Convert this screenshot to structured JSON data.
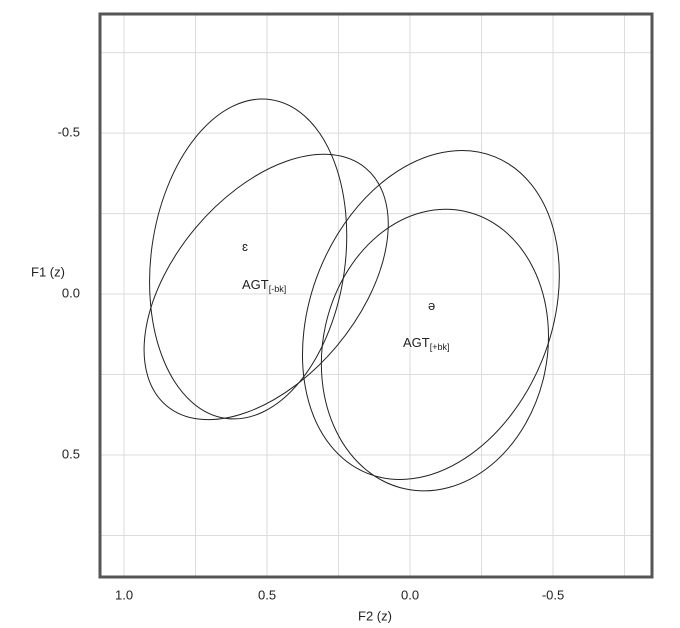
{
  "chart_data": {
    "type": "ellipse",
    "xlabel": "F2 (z)",
    "ylabel": "F1 (z)",
    "xlim": [
      1.084,
      -0.846
    ],
    "ylim": [
      -0.87,
      0.879
    ],
    "xticks": [
      {
        "value": 1.0,
        "label": "1.0"
      },
      0.5,
      {
        "value": 0.0,
        "label": "0.0"
      },
      -0.5
    ],
    "yticks": [
      -0.5,
      {
        "value": 0.0,
        "label": "0.0"
      },
      0.5
    ],
    "x_minor_ticks": [
      0.75,
      0.25,
      -0.25,
      -0.75
    ],
    "y_minor_ticks": [
      -0.75,
      -0.25,
      0.25,
      0.75
    ],
    "grid": true,
    "color": "#222222",
    "ellipses": [
      {
        "cx": 0.566,
        "cy": -0.109,
        "rx": 0.339,
        "ry": 0.5,
        "angle": 8
      },
      {
        "cx": 0.503,
        "cy": -0.022,
        "rx": 0.542,
        "ry": 0.286,
        "angle": -50
      },
      {
        "cx": -0.073,
        "cy": 0.065,
        "rx": 0.42,
        "ry": 0.53,
        "angle": 22
      },
      {
        "cx": -0.087,
        "cy": 0.174,
        "rx": 0.392,
        "ry": 0.441,
        "angle": 12
      }
    ],
    "annotations": [
      {
        "text": "ɛ"
      },
      {
        "text": "AGT",
        "sub": "[-bk]"
      },
      {
        "text": "ə"
      },
      {
        "text": "AGT",
        "sub": "[+bk]"
      }
    ]
  }
}
